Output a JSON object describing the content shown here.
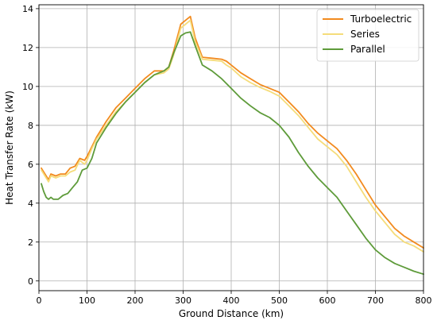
{
  "chart_data": {
    "type": "line",
    "title": "",
    "xlabel": "Ground Distance (km)",
    "ylabel": "Heat Transfer Rate (kW)",
    "xlim": [
      0,
      800
    ],
    "ylim": [
      -0.5,
      14.2
    ],
    "xticks": [
      0,
      100,
      200,
      300,
      400,
      500,
      600,
      700,
      800
    ],
    "yticks": [
      0,
      2,
      4,
      6,
      8,
      10,
      12,
      14
    ],
    "grid": true,
    "legend_position": "top-right",
    "series": [
      {
        "name": "Turboelectric",
        "color": "#f28a1e",
        "x": [
          5,
          15,
          20,
          25,
          35,
          45,
          55,
          65,
          75,
          85,
          95,
          100,
          110,
          120,
          140,
          160,
          180,
          200,
          220,
          240,
          260,
          270,
          280,
          295,
          305,
          315,
          325,
          340,
          360,
          380,
          390,
          400,
          420,
          440,
          460,
          480,
          500,
          520,
          540,
          560,
          580,
          600,
          620,
          640,
          660,
          680,
          700,
          720,
          740,
          760,
          780,
          800
        ],
        "y": [
          5.8,
          5.4,
          5.2,
          5.5,
          5.4,
          5.5,
          5.5,
          5.8,
          5.9,
          6.3,
          6.2,
          6.4,
          6.9,
          7.4,
          8.2,
          8.9,
          9.4,
          9.9,
          10.4,
          10.8,
          10.8,
          11.0,
          11.8,
          13.2,
          13.4,
          13.6,
          12.5,
          11.5,
          11.45,
          11.4,
          11.3,
          11.1,
          10.7,
          10.4,
          10.1,
          9.9,
          9.7,
          9.2,
          8.7,
          8.1,
          7.6,
          7.2,
          6.8,
          6.2,
          5.5,
          4.7,
          3.9,
          3.3,
          2.7,
          2.3,
          2.0,
          1.7
        ]
      },
      {
        "name": "Series",
        "color": "#f5dc7a",
        "x": [
          5,
          15,
          20,
          25,
          35,
          45,
          55,
          65,
          75,
          85,
          95,
          100,
          110,
          120,
          140,
          160,
          180,
          200,
          220,
          240,
          260,
          270,
          280,
          295,
          305,
          315,
          325,
          340,
          360,
          380,
          390,
          400,
          420,
          440,
          460,
          480,
          500,
          520,
          540,
          560,
          580,
          600,
          620,
          640,
          660,
          680,
          700,
          720,
          740,
          760,
          780,
          800
        ],
        "y": [
          5.7,
          5.3,
          5.1,
          5.4,
          5.3,
          5.4,
          5.4,
          5.6,
          5.7,
          6.2,
          6.0,
          6.2,
          6.8,
          7.3,
          8.0,
          8.7,
          9.2,
          9.7,
          10.2,
          10.6,
          10.7,
          10.9,
          11.6,
          13.0,
          13.2,
          13.4,
          12.3,
          11.4,
          11.35,
          11.3,
          11.1,
          10.95,
          10.5,
          10.2,
          9.95,
          9.75,
          9.5,
          9.0,
          8.5,
          7.9,
          7.3,
          6.9,
          6.5,
          5.9,
          5.1,
          4.3,
          3.6,
          3.0,
          2.4,
          2.0,
          1.8,
          1.5
        ]
      },
      {
        "name": "Parallel",
        "color": "#5e9b3a",
        "x": [
          5,
          10,
          15,
          20,
          25,
          30,
          40,
          50,
          60,
          70,
          80,
          90,
          100,
          110,
          120,
          140,
          160,
          180,
          200,
          220,
          240,
          260,
          270,
          280,
          295,
          305,
          315,
          325,
          340,
          360,
          380,
          400,
          420,
          440,
          460,
          480,
          500,
          520,
          540,
          560,
          580,
          600,
          620,
          640,
          660,
          680,
          700,
          720,
          740,
          760,
          780,
          800
        ],
        "y": [
          5.0,
          4.6,
          4.3,
          4.2,
          4.3,
          4.2,
          4.2,
          4.4,
          4.5,
          4.8,
          5.1,
          5.7,
          5.8,
          6.3,
          7.1,
          7.9,
          8.6,
          9.2,
          9.7,
          10.2,
          10.6,
          10.8,
          11.0,
          11.7,
          12.6,
          12.75,
          12.8,
          12.1,
          11.1,
          10.8,
          10.4,
          9.9,
          9.4,
          9.0,
          8.65,
          8.4,
          8.0,
          7.4,
          6.6,
          5.9,
          5.3,
          4.8,
          4.3,
          3.6,
          2.9,
          2.2,
          1.6,
          1.2,
          0.9,
          0.7,
          0.5,
          0.35
        ]
      }
    ]
  }
}
